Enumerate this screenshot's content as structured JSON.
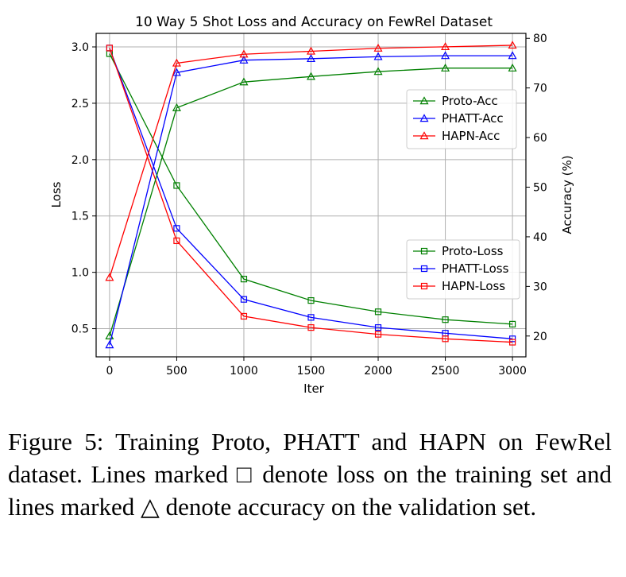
{
  "chart_data": {
    "type": "line",
    "title": "10 Way 5 Shot Loss and Accuracy on FewRel Dataset",
    "xlabel": "Iter",
    "ylabel_left": "Loss",
    "ylabel_right": "Accuracy (%)",
    "x": [
      0,
      500,
      1000,
      1500,
      2000,
      2500,
      3000
    ],
    "xlim": [
      -100,
      3100
    ],
    "ylim_left": [
      0.25,
      3.12
    ],
    "ylim_right": [
      15.8,
      81.0
    ],
    "xticks": [
      "0",
      "500",
      "1000",
      "1500",
      "2000",
      "2500",
      "3000"
    ],
    "yticks_left": [
      "0.5",
      "1.0",
      "1.5",
      "2.0",
      "2.5",
      "3.0"
    ],
    "yticks_right": [
      "20",
      "30",
      "40",
      "50",
      "60",
      "70",
      "80"
    ],
    "grid": true,
    "accuracy_series": [
      {
        "name": "Proto-Acc",
        "color": "#008000",
        "marker": "triangle",
        "values": [
          20.0,
          66.0,
          71.2,
          72.3,
          73.3,
          74.0,
          74.0
        ]
      },
      {
        "name": "PHATT-Acc",
        "color": "#0000ff",
        "marker": "triangle",
        "values": [
          18.2,
          73.1,
          75.6,
          75.9,
          76.3,
          76.5,
          76.5
        ]
      },
      {
        "name": "HAPN-Acc",
        "color": "#ff0000",
        "marker": "triangle",
        "values": [
          31.8,
          75.0,
          76.8,
          77.4,
          78.0,
          78.3,
          78.6
        ]
      }
    ],
    "loss_series": [
      {
        "name": "Proto-Loss",
        "color": "#008000",
        "marker": "square",
        "values": [
          2.94,
          1.77,
          0.94,
          0.75,
          0.65,
          0.58,
          0.54
        ]
      },
      {
        "name": "PHATT-Loss",
        "color": "#0000ff",
        "marker": "square",
        "values": [
          2.99,
          1.39,
          0.76,
          0.6,
          0.51,
          0.46,
          0.41
        ]
      },
      {
        "name": "HAPN-Loss",
        "color": "#ff0000",
        "marker": "square",
        "values": [
          2.99,
          1.28,
          0.61,
          0.51,
          0.45,
          0.41,
          0.38
        ]
      }
    ],
    "legends": [
      "accuracy: right-middle",
      "loss: lower-right"
    ]
  },
  "caption": {
    "text": "Figure 5:  Training Proto, PHATT and HAPN on FewRel dataset. Lines marked □ denote loss on the training set and lines marked △ denote accuracy on the validation set."
  }
}
